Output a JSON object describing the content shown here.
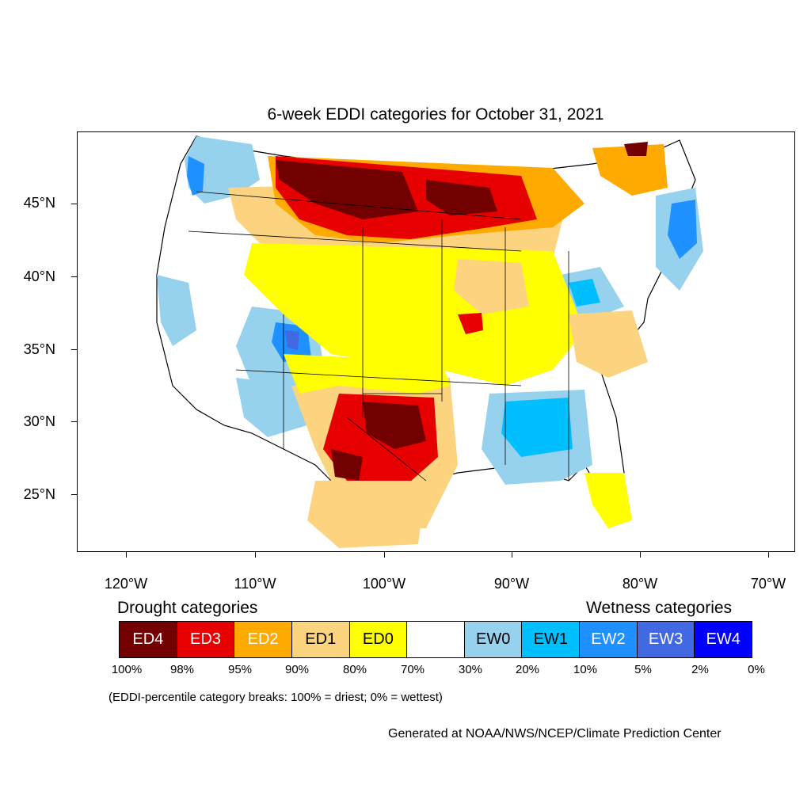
{
  "title": "6-week EDDI categories for October 31, 2021",
  "lat_labels": [
    "45°N",
    "40°N",
    "35°N",
    "30°N",
    "25°N"
  ],
  "lon_labels": [
    "120°W",
    "110°W",
    "100°W",
    "90°W",
    "80°W",
    "70°W"
  ],
  "legend": {
    "drought_title": "Drought categories",
    "wetness_title": "Wetness categories",
    "categories": [
      {
        "label": "ED4",
        "color": "#730000",
        "text_color": "#ffffff"
      },
      {
        "label": "ED3",
        "color": "#e60000",
        "text_color": "#ffffff"
      },
      {
        "label": "ED2",
        "color": "#ffaa00",
        "text_color": "#ffffff"
      },
      {
        "label": "ED1",
        "color": "#fcd37f",
        "text_color": "#000000"
      },
      {
        "label": "ED0",
        "color": "#ffff00",
        "text_color": "#000000"
      },
      {
        "label": "",
        "color": "#ffffff",
        "text_color": "#000000"
      },
      {
        "label": "EW0",
        "color": "#96d2ee",
        "text_color": "#000000"
      },
      {
        "label": "EW1",
        "color": "#00bfff",
        "text_color": "#000000"
      },
      {
        "label": "EW2",
        "color": "#1e90ff",
        "text_color": "#ffffff"
      },
      {
        "label": "EW3",
        "color": "#4169e1",
        "text_color": "#ffffff"
      },
      {
        "label": "EW4",
        "color": "#0000ff",
        "text_color": "#ffffff"
      }
    ],
    "breaks": [
      "100%",
      "98%",
      "95%",
      "90%",
      "80%",
      "70%",
      "30%",
      "20%",
      "10%",
      "5%",
      "2%",
      "0%"
    ]
  },
  "note": "(EDDI-percentile category breaks: 100% = driest; 0% = wettest)",
  "credit": "Generated at NOAA/NWS/NCEP/Climate Prediction Center",
  "colors": {
    "ED4": "#730000",
    "ED3": "#e60000",
    "ED2": "#ffaa00",
    "ED1": "#fcd37f",
    "ED0": "#ffff00",
    "EW0": "#96d2ee",
    "EW1": "#00bfff",
    "EW2": "#1e90ff",
    "EW3": "#4169e1",
    "EW4": "#0000ff"
  }
}
